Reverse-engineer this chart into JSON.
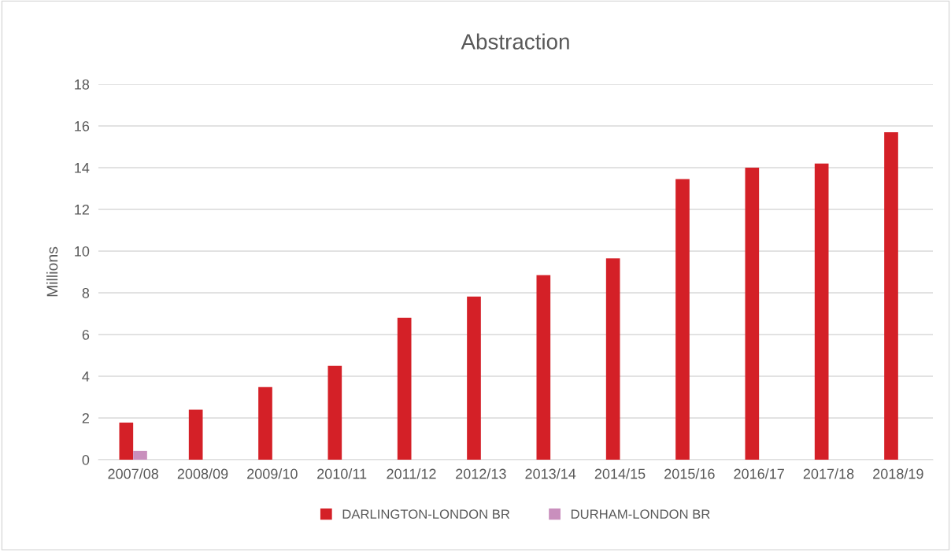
{
  "chart_data": {
    "type": "bar",
    "title": "Abstraction",
    "ylabel": "Millions",
    "categories": [
      "2007/08",
      "2008/09",
      "2009/10",
      "2010/11",
      "2011/12",
      "2012/13",
      "2013/14",
      "2014/15",
      "2015/16",
      "2016/17",
      "2017/18",
      "2018/19"
    ],
    "series": [
      {
        "name": "DARLINGTON-LONDON BR",
        "color": "#d42027",
        "values": [
          1.78,
          2.4,
          3.48,
          4.5,
          6.8,
          7.82,
          8.85,
          9.65,
          13.45,
          14.0,
          14.2,
          15.7
        ]
      },
      {
        "name": "DURHAM-LONDON BR",
        "color": "#c98fbd",
        "values": [
          0.42,
          null,
          null,
          null,
          null,
          null,
          null,
          null,
          null,
          null,
          null,
          null
        ]
      }
    ],
    "ylim": [
      0,
      18
    ],
    "yticks": [
      0,
      2,
      4,
      6,
      8,
      10,
      12,
      14,
      16,
      18
    ],
    "grid": "y",
    "legend": "bottom"
  }
}
